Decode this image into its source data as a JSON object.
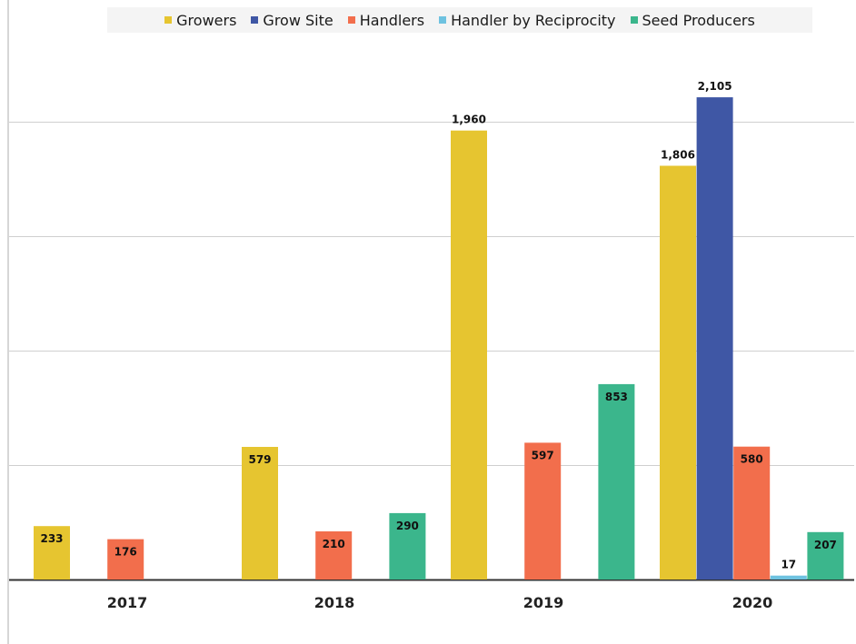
{
  "chart_data": {
    "type": "bar",
    "categories": [
      "2017",
      "2018",
      "2019",
      "2020"
    ],
    "series": [
      {
        "name": "Growers",
        "color": "#e6c530",
        "values": [
          233,
          579,
          1960,
          1806
        ]
      },
      {
        "name": "Grow Site",
        "color": "#3f57a5",
        "values": [
          null,
          null,
          null,
          2105
        ]
      },
      {
        "name": "Handlers",
        "color": "#f26e4c",
        "values": [
          176,
          210,
          597,
          580
        ]
      },
      {
        "name": "Handler by Reciprocity",
        "color": "#6ec2e0",
        "values": [
          null,
          null,
          null,
          17
        ]
      },
      {
        "name": "Seed Producers",
        "color": "#3bb68c",
        "values": [
          null,
          290,
          853,
          207
        ]
      }
    ],
    "ylim": [
      0,
      2000
    ],
    "yticks": [
      0,
      500,
      1000,
      1500,
      2000
    ],
    "grid": true,
    "legend_position": "top"
  }
}
